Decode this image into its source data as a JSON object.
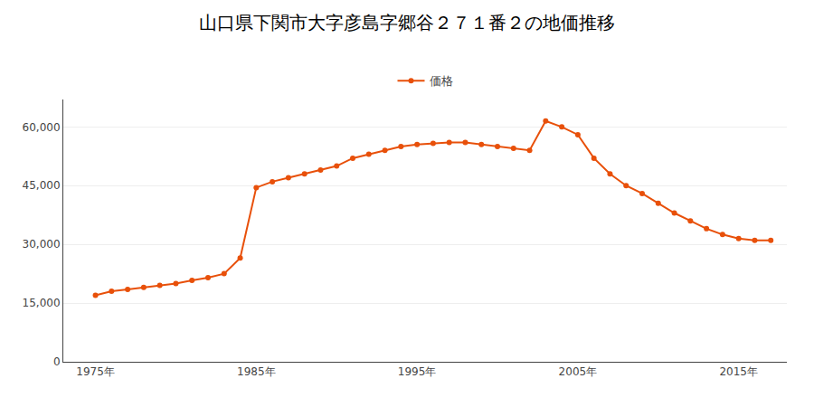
{
  "chart_data": {
    "type": "line",
    "title": "山口県下関市大字彦島字郷谷２７１番２の地価推移",
    "x": [
      1975,
      1976,
      1977,
      1978,
      1979,
      1980,
      1981,
      1982,
      1983,
      1984,
      1985,
      1986,
      1987,
      1988,
      1989,
      1990,
      1991,
      1992,
      1993,
      1994,
      1995,
      1996,
      1997,
      1998,
      1999,
      2000,
      2001,
      2002,
      2003,
      2004,
      2005,
      2006,
      2007,
      2008,
      2009,
      2010,
      2011,
      2012,
      2013,
      2014,
      2015,
      2016,
      2017
    ],
    "series": [
      {
        "name": "価格",
        "color": "#e8500a",
        "marker": "circle",
        "values": [
          17000,
          18000,
          18500,
          19000,
          19500,
          20000,
          20800,
          21500,
          22500,
          26500,
          44500,
          46000,
          47000,
          48000,
          49000,
          50000,
          52000,
          53000,
          54000,
          55000,
          55500,
          55800,
          56000,
          56000,
          55500,
          55000,
          54500,
          54000,
          61500,
          60000,
          58000,
          52000,
          48000,
          45000,
          43000,
          40500,
          38000,
          36000,
          34000,
          32500,
          31500,
          31000,
          31000
        ]
      }
    ],
    "xlim": [
      1973,
      2018
    ],
    "xticks": [
      {
        "value": 1975,
        "label": "1975年"
      },
      {
        "value": 1985,
        "label": "1985年"
      },
      {
        "value": 1995,
        "label": "1995年"
      },
      {
        "value": 2005,
        "label": "2005年"
      },
      {
        "value": 2015,
        "label": "2015年"
      }
    ],
    "ylim": [
      0,
      67000
    ],
    "yticks": [
      0,
      {
        "value": 15000,
        "label": "15,000"
      },
      {
        "value": 30000,
        "label": "30,000"
      },
      {
        "value": 45000,
        "label": "45,000"
      },
      {
        "value": 60000,
        "label": "60,000"
      }
    ],
    "grid": true,
    "legend": "top"
  }
}
